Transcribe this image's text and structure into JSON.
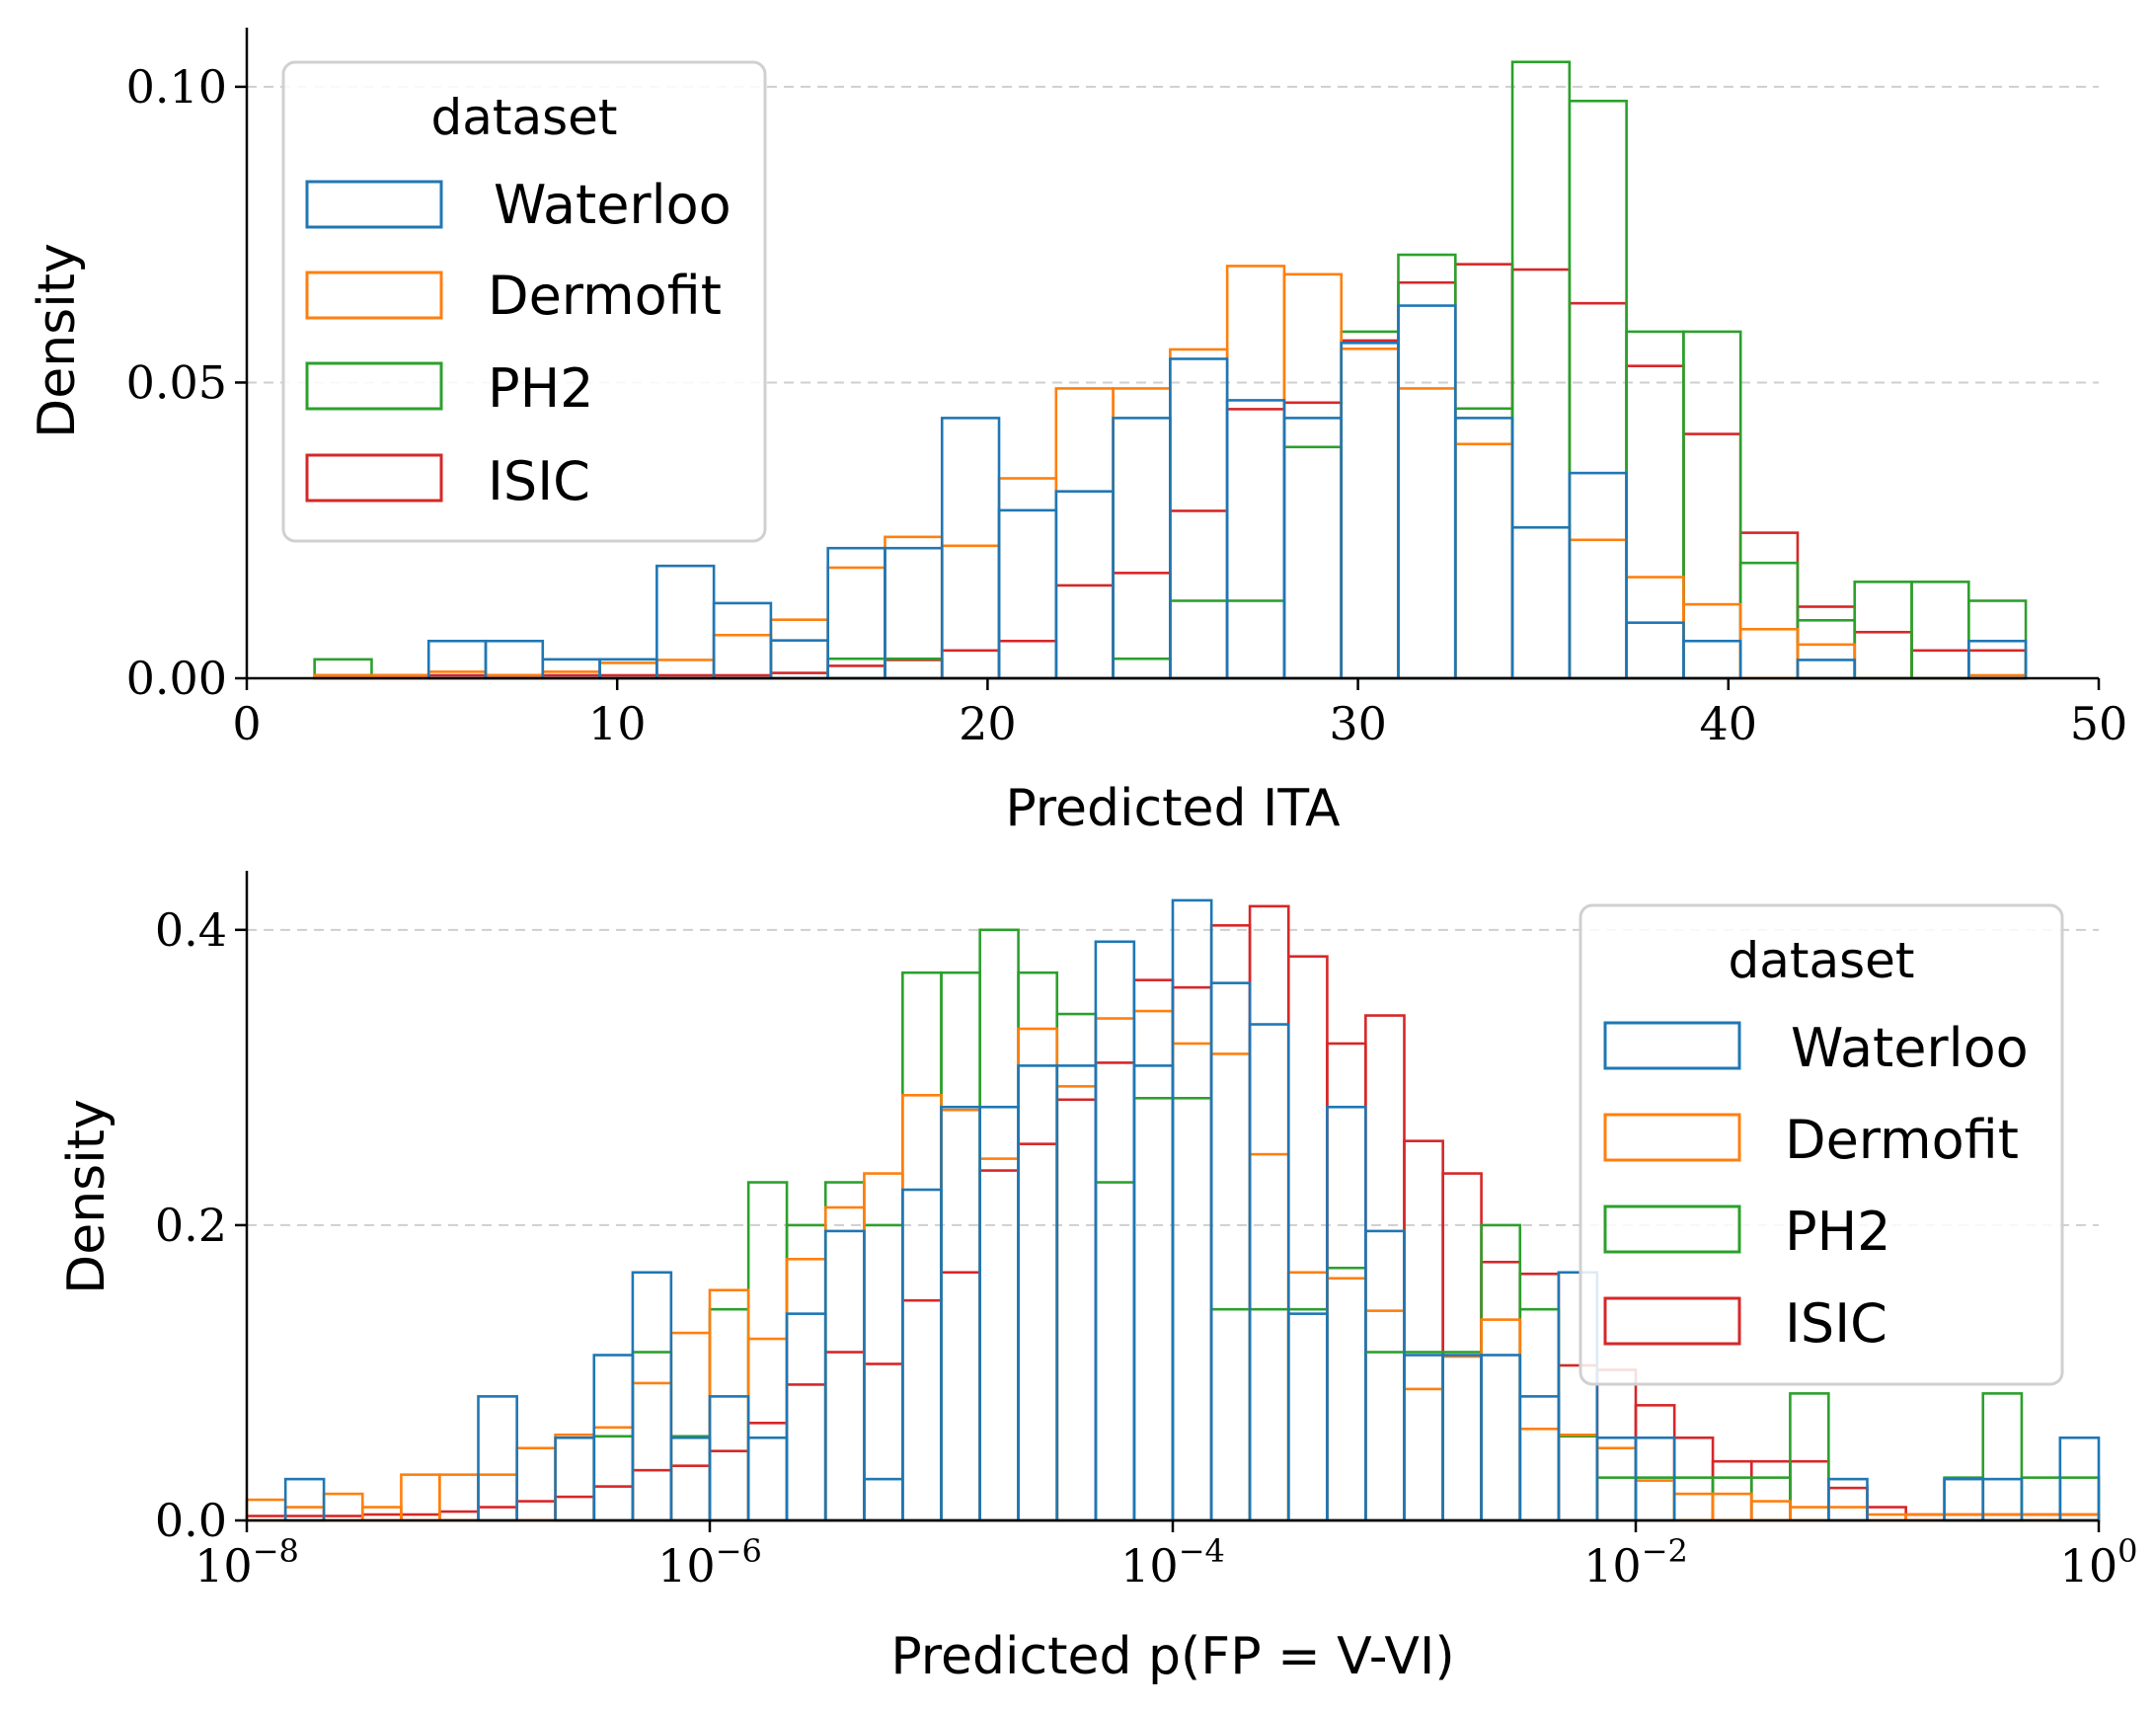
{
  "colors": {
    "Waterloo": "#1f77b4",
    "Dermofit": "#ff7f0e",
    "PH2": "#2ca02c",
    "ISIC": "#d62728"
  },
  "chart_data": [
    {
      "type": "bar",
      "subtype": "step-histogram",
      "xlabel": "Predicted ITA",
      "ylabel": "Density",
      "xlim": [
        0,
        50
      ],
      "ylim": [
        0,
        0.11
      ],
      "xticks": [
        0,
        10,
        20,
        30,
        40,
        50
      ],
      "xtick_labels": [
        "0",
        "10",
        "20",
        "30",
        "40",
        "50"
      ],
      "yticks": [
        0.0,
        0.05,
        0.1
      ],
      "ytick_labels": [
        "0.00",
        "0.05",
        "0.10"
      ],
      "grid": "y dashed",
      "legend_title": "dataset",
      "legend_position": "top-left",
      "bin_edges": [
        1.83,
        3.37,
        4.91,
        6.45,
        7.99,
        9.53,
        11.07,
        12.61,
        14.15,
        15.69,
        17.23,
        18.77,
        20.31,
        21.85,
        23.39,
        24.93,
        26.47,
        28.01,
        29.55,
        31.09,
        32.63,
        34.17,
        35.71,
        37.25,
        38.79,
        40.33,
        41.87,
        43.41,
        44.95,
        46.49,
        48.03
      ],
      "series": [
        {
          "name": "Waterloo",
          "values": [
            0,
            0,
            0.0063,
            0.0063,
            0.0032,
            0.0032,
            0.019,
            0.0127,
            0.0064,
            0.022,
            0.022,
            0.044,
            0.0284,
            0.0316,
            0.044,
            0.054,
            0.047,
            0.044,
            0.0567,
            0.063,
            0.044,
            0.0255,
            0.0347,
            0.0094,
            0.0063,
            0,
            0.0031,
            0,
            0,
            0.0063
          ]
        },
        {
          "name": "Dermofit",
          "values": [
            0.0005,
            0.0005,
            0.0011,
            0.0005,
            0.0011,
            0.0026,
            0.0031,
            0.0073,
            0.0099,
            0.0187,
            0.0239,
            0.0224,
            0.0338,
            0.049,
            0.049,
            0.0556,
            0.0697,
            0.0683,
            0.0557,
            0.049,
            0.0396,
            0.0255,
            0.0234,
            0.0171,
            0.0125,
            0.0083,
            0.0057,
            0,
            0,
            0.0005
          ]
        },
        {
          "name": "PH2",
          "values": [
            0.0032,
            0,
            0,
            0,
            0,
            0,
            0,
            0,
            0,
            0.0033,
            0.0033,
            0,
            0,
            0,
            0.0033,
            0.0131,
            0.0131,
            0.0391,
            0.0586,
            0.0716,
            0.0456,
            0.1042,
            0.0976,
            0.0586,
            0.0586,
            0.0195,
            0.0098,
            0.0163,
            0.0163,
            0.0131
          ]
        },
        {
          "name": "ISIC",
          "values": [
            0.0005,
            0.0005,
            0.0005,
            0.0005,
            0.0005,
            0.0005,
            0.0005,
            0.0005,
            0.0009,
            0.0021,
            0.0031,
            0.0047,
            0.0063,
            0.0157,
            0.0178,
            0.0283,
            0.0455,
            0.0466,
            0.0571,
            0.0669,
            0.07,
            0.0691,
            0.0634,
            0.0528,
            0.0413,
            0.0246,
            0.0121,
            0.0078,
            0.0047,
            0.0047
          ]
        }
      ]
    },
    {
      "type": "bar",
      "subtype": "step-histogram",
      "xlabel": "Predicted p(FP = V-VI)",
      "ylabel": "Density",
      "xscale": "log",
      "xlim": [
        1e-08,
        1
      ],
      "ylim": [
        0,
        0.44
      ],
      "xticks": [
        -8,
        -6,
        -4,
        -2,
        0
      ],
      "xtick_bases": [
        "10",
        "10",
        "10",
        "10",
        "10"
      ],
      "xtick_exponents": [
        "−8",
        "−6",
        "−4",
        "−2",
        "0"
      ],
      "yticks": [
        0.0,
        0.2,
        0.4
      ],
      "ytick_labels": [
        "0.0",
        "0.2",
        "0.4"
      ],
      "grid": "y dashed",
      "legend_title": "dataset",
      "legend_position": "top-right",
      "bin_edges_log10": [
        -8.0,
        -7.833,
        -7.667,
        -7.5,
        -7.333,
        -7.167,
        -7.0,
        -6.833,
        -6.667,
        -6.5,
        -6.333,
        -6.167,
        -6.0,
        -5.833,
        -5.667,
        -5.5,
        -5.333,
        -5.167,
        -5.0,
        -4.833,
        -4.667,
        -4.5,
        -4.333,
        -4.167,
        -4.0,
        -3.833,
        -3.667,
        -3.5,
        -3.333,
        -3.167,
        -3.0,
        -2.833,
        -2.667,
        -2.5,
        -2.333,
        -2.167,
        -2.0,
        -1.833,
        -1.667,
        -1.5,
        -1.333,
        -1.167,
        -1.0,
        -0.833,
        -0.667,
        -0.5,
        -0.333,
        -0.167,
        0.0
      ],
      "series": [
        {
          "name": "Waterloo",
          "values": [
            0,
            0.028,
            0,
            0,
            0,
            0,
            0.084,
            0,
            0.056,
            0.112,
            0.168,
            0.056,
            0.084,
            0.056,
            0.14,
            0.196,
            0.028,
            0.224,
            0.28,
            0.28,
            0.308,
            0.308,
            0.392,
            0.308,
            0.42,
            0.364,
            0.336,
            0.14,
            0.28,
            0.196,
            0.112,
            0.112,
            0.112,
            0.084,
            0.168,
            0.056,
            0.056,
            0,
            0,
            0,
            0,
            0.028,
            0,
            0,
            0.028,
            0.028,
            0,
            0.056
          ]
        },
        {
          "name": "Dermofit",
          "values": [
            0.014,
            0.009,
            0.018,
            0.009,
            0.031,
            0.031,
            0.031,
            0.049,
            0.058,
            0.063,
            0.093,
            0.127,
            0.156,
            0.123,
            0.177,
            0.212,
            0.235,
            0.288,
            0.278,
            0.245,
            0.333,
            0.294,
            0.34,
            0.345,
            0.323,
            0.316,
            0.248,
            0.168,
            0.164,
            0.142,
            0.089,
            0.111,
            0.136,
            0.062,
            0.058,
            0.049,
            0.027,
            0.018,
            0.018,
            0.013,
            0.009,
            0.009,
            0.004,
            0.004,
            0.004,
            0.004,
            0.004,
            0.004
          ]
        },
        {
          "name": "PH2",
          "values": [
            0,
            0,
            0,
            0,
            0,
            0,
            0,
            0,
            0,
            0.057,
            0.114,
            0.057,
            0.143,
            0.229,
            0.2,
            0.229,
            0.2,
            0.371,
            0.371,
            0.4,
            0.371,
            0.343,
            0.229,
            0.286,
            0.286,
            0.143,
            0.143,
            0.143,
            0.171,
            0.114,
            0.114,
            0.114,
            0.2,
            0.143,
            0.057,
            0.029,
            0.029,
            0.029,
            0.029,
            0.029,
            0.086,
            0,
            0,
            0,
            0.029,
            0.086,
            0.029,
            0.029
          ]
        },
        {
          "name": "ISIC",
          "values": [
            0.003,
            0.003,
            0.003,
            0.004,
            0.004,
            0.006,
            0.009,
            0.013,
            0.016,
            0.023,
            0.034,
            0.037,
            0.047,
            0.066,
            0.092,
            0.114,
            0.106,
            0.149,
            0.168,
            0.237,
            0.255,
            0.285,
            0.31,
            0.366,
            0.361,
            0.403,
            0.416,
            0.382,
            0.323,
            0.342,
            0.257,
            0.235,
            0.175,
            0.167,
            0.105,
            0.102,
            0.078,
            0.056,
            0.04,
            0.04,
            0.04,
            0.022,
            0.009,
            0.004,
            0.004,
            0.004,
            0.004,
            0.004
          ]
        }
      ]
    }
  ]
}
